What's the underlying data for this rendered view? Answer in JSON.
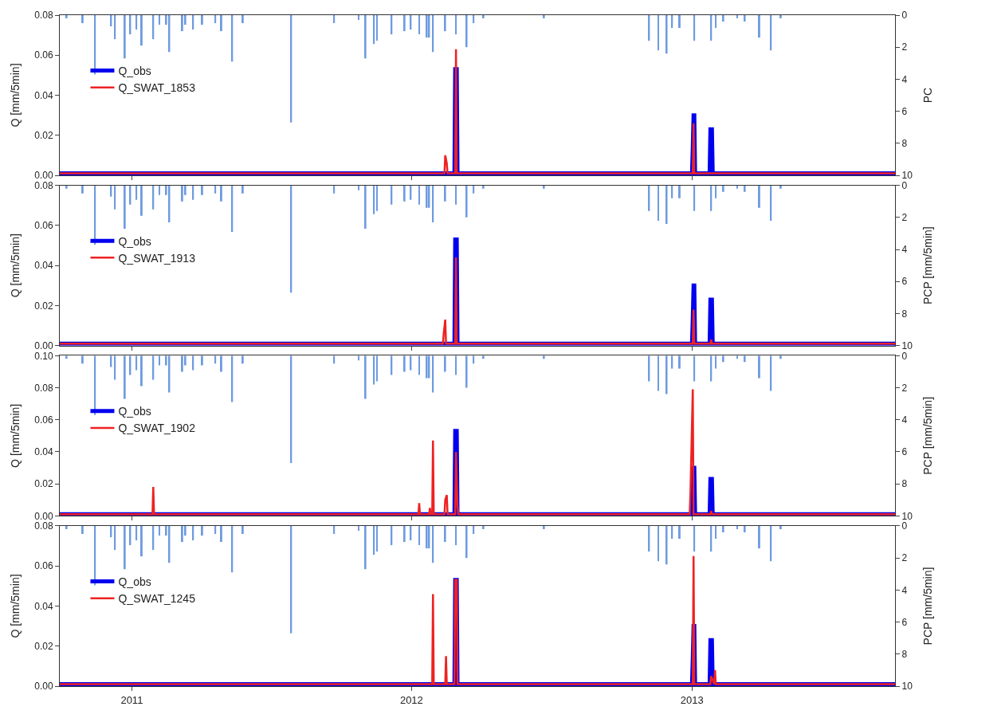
{
  "chart_data": [
    {
      "type": "line",
      "ylabel": "Q [mm/5min]",
      "y2label": "PC",
      "xlim": [
        "2010-09-29",
        "2013-09-23"
      ],
      "xticks": [
        {
          "value": "2011-01-01",
          "label": null
        },
        {
          "value": "2012-01-01",
          "label": null
        },
        {
          "value": "2013-01-01",
          "label": null
        }
      ],
      "ylim": [
        0,
        0.08
      ],
      "yticks": [
        {
          "value": 0,
          "label": "0.00"
        },
        {
          "value": 0.02,
          "label": "0.02"
        },
        {
          "value": 0.04,
          "label": "0.04"
        },
        {
          "value": 0.06,
          "label": "0.06"
        },
        {
          "value": 0.08,
          "label": "0.08"
        }
      ],
      "y2lim": [
        10,
        0
      ],
      "y2ticks": [
        0,
        2,
        4,
        6,
        8,
        10
      ],
      "tick_labels": "y",
      "legend": "left",
      "series": [
        {
          "type": "bar",
          "axis": "y2",
          "color": "#6f9be0",
          "x": [
            "2010-10-08",
            "2010-10-29",
            "2010-11-14",
            "2010-12-05",
            "2010-12-10",
            "2010-12-23",
            "2010-12-30",
            "2011-01-07",
            "2011-01-14",
            "2011-01-29",
            "2011-02-06",
            "2011-02-15",
            "2011-02-19",
            "2011-03-08",
            "2011-03-12",
            "2011-03-22",
            "2011-04-03",
            "2011-04-20",
            "2011-04-28",
            "2011-05-12",
            "2011-05-26",
            "2011-07-28",
            "2011-09-22",
            "2011-10-24",
            "2011-11-02",
            "2011-11-13",
            "2011-11-17",
            "2011-12-06",
            "2011-12-23",
            "2011-12-31",
            "2012-01-11",
            "2012-01-21",
            "2012-01-24",
            "2012-01-29",
            "2012-02-14",
            "2012-02-28",
            "2012-03-13",
            "2012-03-22",
            "2012-04-04",
            "2012-06-22",
            "2012-11-06",
            "2012-11-18",
            "2012-11-29",
            "2012-12-06",
            "2012-12-16",
            "2013-01-04",
            "2013-01-26",
            "2013-02-01",
            "2013-02-11",
            "2013-03-01",
            "2013-03-11",
            "2013-03-30",
            "2013-04-14",
            "2013-04-27"
          ],
          "values": [
            0.2,
            0.5,
            3.7,
            0.7,
            1.5,
            2.7,
            1.2,
            0.9,
            1.9,
            1.5,
            0.6,
            0.6,
            2.3,
            1.0,
            0.6,
            0.9,
            0.6,
            0.5,
            1.0,
            2.9,
            0.5,
            6.7,
            0.5,
            0.3,
            2.7,
            1.8,
            1.6,
            1.2,
            1.0,
            0.9,
            1.2,
            1.4,
            1.4,
            2.3,
            1.0,
            1.2,
            2.0,
            0.5,
            0.2,
            0.2,
            1.6,
            2.2,
            2.4,
            0.8,
            0.8,
            1.6,
            1.6,
            0.8,
            0.4,
            0.2,
            0.4,
            1.4,
            2.2,
            0.2
          ]
        },
        {
          "name": "Q_obs",
          "color": "#0000ee",
          "x": [
            "2010-09-29",
            "2012-02-26",
            "2012-02-27",
            "2012-02-29",
            "2012-03-01",
            "2013-01-01",
            "2013-01-02",
            "2013-01-03",
            "2013-01-04",
            "2013-01-05",
            "2013-01-24",
            "2013-01-25",
            "2013-01-27",
            "2013-01-28",
            "2013-09-23"
          ],
          "values": [
            0.001,
            0.001,
            0.053,
            0.053,
            0.001,
            0.001,
            0.014,
            0.03,
            0.03,
            0.001,
            0.001,
            0.023,
            0.023,
            0.001,
            0.001
          ]
        },
        {
          "name": "Q_SWAT_1853",
          "color": "#ee2222",
          "x": [
            "2010-09-29",
            "2012-02-13",
            "2012-02-14",
            "2012-02-16",
            "2012-02-17",
            "2012-02-27",
            "2012-02-28",
            "2012-02-29",
            "2013-01-02",
            "2013-01-03",
            "2013-01-04",
            "2013-09-23"
          ],
          "values": [
            0.001,
            0.001,
            0.01,
            0.006,
            0.001,
            0.001,
            0.063,
            0.001,
            0.001,
            0.026,
            0.001,
            0.001
          ]
        }
      ]
    },
    {
      "type": "line",
      "ylabel": "Q [mm/5min]",
      "y2label": "PCP [mm/5min]",
      "xlim": [
        "2010-09-29",
        "2013-09-23"
      ],
      "xticks": [
        {
          "value": "2011-01-01",
          "label": null
        },
        {
          "value": "2012-01-01",
          "label": null
        },
        {
          "value": "2013-01-01",
          "label": null
        }
      ],
      "ylim": [
        0,
        0.08
      ],
      "yticks": [
        {
          "value": 0,
          "label": "0.00"
        },
        {
          "value": 0.02,
          "label": "0.02"
        },
        {
          "value": 0.04,
          "label": "0.04"
        },
        {
          "value": 0.06,
          "label": "0.06"
        },
        {
          "value": 0.08,
          "label": "0.08"
        }
      ],
      "y2lim": [
        10,
        0
      ],
      "y2ticks": [
        0,
        2,
        4,
        6,
        8,
        10
      ],
      "tick_labels": "y",
      "legend": "left",
      "series": [
        {
          "type": "bar",
          "axis": "y2",
          "color": "#6f9be0",
          "x": [
            "2010-10-08",
            "2010-10-29",
            "2010-11-14",
            "2010-12-05",
            "2010-12-10",
            "2010-12-23",
            "2010-12-30",
            "2011-01-07",
            "2011-01-14",
            "2011-01-29",
            "2011-02-06",
            "2011-02-15",
            "2011-02-19",
            "2011-03-08",
            "2011-03-12",
            "2011-03-22",
            "2011-04-03",
            "2011-04-20",
            "2011-04-28",
            "2011-05-12",
            "2011-05-26",
            "2011-07-28",
            "2011-09-22",
            "2011-10-24",
            "2011-11-02",
            "2011-11-13",
            "2011-11-17",
            "2011-12-06",
            "2011-12-23",
            "2011-12-31",
            "2012-01-11",
            "2012-01-21",
            "2012-01-24",
            "2012-01-29",
            "2012-02-14",
            "2012-02-28",
            "2012-03-13",
            "2012-03-22",
            "2012-04-04",
            "2012-06-22",
            "2012-11-06",
            "2012-11-18",
            "2012-11-29",
            "2012-12-06",
            "2012-12-16",
            "2013-01-04",
            "2013-01-26",
            "2013-02-01",
            "2013-02-11",
            "2013-03-01",
            "2013-03-11",
            "2013-03-30",
            "2013-04-14",
            "2013-04-27"
          ],
          "values": [
            0.2,
            0.5,
            3.7,
            0.7,
            1.5,
            2.7,
            1.2,
            0.9,
            1.9,
            1.5,
            0.6,
            0.6,
            2.3,
            1.0,
            0.6,
            0.9,
            0.6,
            0.5,
            1.0,
            2.9,
            0.5,
            6.7,
            0.5,
            0.3,
            2.7,
            1.8,
            1.6,
            1.2,
            1.0,
            0.9,
            1.2,
            1.4,
            1.4,
            2.3,
            1.0,
            1.2,
            2.0,
            0.5,
            0.2,
            0.2,
            1.6,
            2.2,
            2.4,
            0.8,
            0.8,
            1.6,
            1.6,
            0.8,
            0.4,
            0.2,
            0.4,
            1.4,
            2.2,
            0.2
          ]
        },
        {
          "name": "Q_obs",
          "color": "#0000ee",
          "x": [
            "2010-09-29",
            "2012-02-26",
            "2012-02-27",
            "2012-02-29",
            "2012-03-01",
            "2013-01-01",
            "2013-01-02",
            "2013-01-03",
            "2013-01-04",
            "2013-01-05",
            "2013-01-24",
            "2013-01-25",
            "2013-01-27",
            "2013-01-28",
            "2013-09-23"
          ],
          "values": [
            0.001,
            0.001,
            0.053,
            0.053,
            0.001,
            0.001,
            0.014,
            0.03,
            0.03,
            0.001,
            0.001,
            0.023,
            0.023,
            0.001,
            0.001
          ]
        },
        {
          "name": "Q_SWAT_1913",
          "color": "#ee2222",
          "x": [
            "2010-09-29",
            "2012-02-11",
            "2012-02-12",
            "2012-02-14",
            "2012-02-15",
            "2012-02-27",
            "2012-02-28",
            "2012-02-29",
            "2013-01-02",
            "2013-01-03",
            "2013-01-04",
            "2013-01-25",
            "2013-01-26",
            "2013-01-27",
            "2013-09-23"
          ],
          "values": [
            0.001,
            0.001,
            0.006,
            0.013,
            0.001,
            0.001,
            0.044,
            0.001,
            0.001,
            0.018,
            0.001,
            0.001,
            0.003,
            0.001,
            0.001
          ]
        }
      ]
    },
    {
      "type": "line",
      "ylabel": "Q [mm/5min]",
      "y2label": "PCP [mm/5min]",
      "xlim": [
        "2010-09-29",
        "2013-09-23"
      ],
      "xticks": [
        {
          "value": "2011-01-01",
          "label": null
        },
        {
          "value": "2012-01-01",
          "label": null
        },
        {
          "value": "2013-01-01",
          "label": null
        }
      ],
      "ylim": [
        0,
        0.1
      ],
      "yticks": [
        {
          "value": 0,
          "label": "0.00"
        },
        {
          "value": 0.02,
          "label": "0.02"
        },
        {
          "value": 0.04,
          "label": "0.04"
        },
        {
          "value": 0.06,
          "label": "0.06"
        },
        {
          "value": 0.08,
          "label": "0.08"
        },
        {
          "value": 0.1,
          "label": "0.10"
        }
      ],
      "y2lim": [
        10,
        0
      ],
      "y2ticks": [
        0,
        2,
        4,
        6,
        8,
        10
      ],
      "tick_labels": "y",
      "legend": "left",
      "series": [
        {
          "type": "bar",
          "axis": "y2",
          "color": "#6f9be0",
          "x": [
            "2010-10-08",
            "2010-10-29",
            "2010-11-14",
            "2010-12-05",
            "2010-12-10",
            "2010-12-23",
            "2010-12-30",
            "2011-01-07",
            "2011-01-14",
            "2011-01-29",
            "2011-02-06",
            "2011-02-15",
            "2011-02-19",
            "2011-03-08",
            "2011-03-12",
            "2011-03-22",
            "2011-04-03",
            "2011-04-20",
            "2011-04-28",
            "2011-05-12",
            "2011-05-26",
            "2011-07-28",
            "2011-09-22",
            "2011-10-24",
            "2011-11-02",
            "2011-11-13",
            "2011-11-17",
            "2011-12-06",
            "2011-12-23",
            "2011-12-31",
            "2012-01-11",
            "2012-01-21",
            "2012-01-24",
            "2012-01-29",
            "2012-02-14",
            "2012-02-28",
            "2012-03-13",
            "2012-03-22",
            "2012-04-04",
            "2012-06-22",
            "2012-11-06",
            "2012-11-18",
            "2012-11-29",
            "2012-12-06",
            "2012-12-16",
            "2013-01-04",
            "2013-01-26",
            "2013-02-01",
            "2013-02-11",
            "2013-03-01",
            "2013-03-11",
            "2013-03-30",
            "2013-04-14",
            "2013-04-27"
          ],
          "values": [
            0.2,
            0.5,
            3.7,
            0.7,
            1.5,
            2.7,
            1.2,
            0.9,
            1.9,
            1.5,
            0.6,
            0.6,
            2.3,
            1.0,
            0.6,
            0.9,
            0.6,
            0.5,
            1.0,
            2.9,
            0.5,
            6.7,
            0.5,
            0.3,
            2.7,
            1.8,
            1.6,
            1.2,
            1.0,
            0.9,
            1.2,
            1.4,
            1.4,
            2.3,
            1.0,
            1.2,
            2.0,
            0.5,
            0.2,
            0.2,
            1.6,
            2.2,
            2.4,
            0.8,
            0.8,
            1.6,
            1.6,
            0.8,
            0.4,
            0.2,
            0.4,
            1.4,
            2.2,
            0.2
          ]
        },
        {
          "name": "Q_obs",
          "color": "#0000ee",
          "x": [
            "2010-09-29",
            "2012-02-26",
            "2012-02-27",
            "2012-02-29",
            "2012-03-01",
            "2013-01-01",
            "2013-01-02",
            "2013-01-03",
            "2013-01-04",
            "2013-01-05",
            "2013-01-24",
            "2013-01-25",
            "2013-01-27",
            "2013-01-28",
            "2013-09-23"
          ],
          "values": [
            0.001,
            0.001,
            0.053,
            0.053,
            0.001,
            0.001,
            0.014,
            0.03,
            0.03,
            0.001,
            0.001,
            0.023,
            0.023,
            0.001,
            0.001
          ]
        },
        {
          "name": "Q_SWAT_1902",
          "color": "#ee2222",
          "x": [
            "2010-09-29",
            "2011-01-28",
            "2011-01-29",
            "2011-01-30",
            "2012-01-10",
            "2012-01-11",
            "2012-01-12",
            "2012-01-24",
            "2012-01-25",
            "2012-01-26",
            "2012-01-28",
            "2012-01-29",
            "2012-01-30",
            "2012-02-13",
            "2012-02-14",
            "2012-02-16",
            "2012-02-17",
            "2012-02-27",
            "2012-02-28",
            "2012-03-01",
            "2012-03-02",
            "2012-12-29",
            "2012-12-30",
            "2013-01-02",
            "2013-01-03",
            "2013-01-04",
            "2013-01-25",
            "2013-01-26",
            "2013-01-27",
            "2013-09-23"
          ],
          "values": [
            0.001,
            0.001,
            0.018,
            0.001,
            0.001,
            0.008,
            0.001,
            0.001,
            0.005,
            0.001,
            0.001,
            0.047,
            0.001,
            0.001,
            0.01,
            0.013,
            0.001,
            0.001,
            0.04,
            0.006,
            0.001,
            0.001,
            0.015,
            0.079,
            0.001,
            0.001,
            0.001,
            0.003,
            0.001,
            0.001
          ]
        }
      ]
    },
    {
      "type": "line",
      "ylabel": "Q [mm/5min]",
      "y2label": "PCP [mm/5min]",
      "xlim": [
        "2010-09-29",
        "2013-09-23"
      ],
      "xticks": [
        {
          "value": "2011-01-01",
          "label": "2011"
        },
        {
          "value": "2012-01-01",
          "label": "2012"
        },
        {
          "value": "2013-01-01",
          "label": "2013"
        }
      ],
      "ylim": [
        0,
        0.08
      ],
      "yticks": [
        {
          "value": 0,
          "label": "0.00"
        },
        {
          "value": 0.02,
          "label": "0.02"
        },
        {
          "value": 0.04,
          "label": "0.04"
        },
        {
          "value": 0.06,
          "label": "0.06"
        },
        {
          "value": 0.08,
          "label": "0.08"
        }
      ],
      "y2lim": [
        10,
        0
      ],
      "y2ticks": [
        0,
        2,
        4,
        6,
        8,
        10
      ],
      "legend": "left",
      "series": [
        {
          "type": "bar",
          "axis": "y2",
          "color": "#6f9be0",
          "x": [
            "2010-10-08",
            "2010-10-29",
            "2010-11-14",
            "2010-12-05",
            "2010-12-10",
            "2010-12-23",
            "2010-12-30",
            "2011-01-07",
            "2011-01-14",
            "2011-01-29",
            "2011-02-06",
            "2011-02-15",
            "2011-02-19",
            "2011-03-08",
            "2011-03-12",
            "2011-03-22",
            "2011-04-03",
            "2011-04-20",
            "2011-04-28",
            "2011-05-12",
            "2011-05-26",
            "2011-07-28",
            "2011-09-22",
            "2011-10-24",
            "2011-11-02",
            "2011-11-13",
            "2011-11-17",
            "2011-12-06",
            "2011-12-23",
            "2011-12-31",
            "2012-01-11",
            "2012-01-21",
            "2012-01-24",
            "2012-01-29",
            "2012-02-14",
            "2012-02-28",
            "2012-03-13",
            "2012-03-22",
            "2012-04-04",
            "2012-06-22",
            "2012-11-06",
            "2012-11-18",
            "2012-11-29",
            "2012-12-06",
            "2012-12-16",
            "2013-01-04",
            "2013-01-26",
            "2013-02-01",
            "2013-02-11",
            "2013-03-01",
            "2013-03-11",
            "2013-03-30",
            "2013-04-14",
            "2013-04-27"
          ],
          "values": [
            0.2,
            0.5,
            3.7,
            0.7,
            1.5,
            2.7,
            1.2,
            0.9,
            1.9,
            1.5,
            0.6,
            0.6,
            2.3,
            1.0,
            0.6,
            0.9,
            0.6,
            0.5,
            1.0,
            2.9,
            0.5,
            6.7,
            0.5,
            0.3,
            2.7,
            1.8,
            1.6,
            1.2,
            1.0,
            0.9,
            1.2,
            1.4,
            1.4,
            2.3,
            1.0,
            1.2,
            2.0,
            0.5,
            0.2,
            0.2,
            1.6,
            2.2,
            2.4,
            0.8,
            0.8,
            1.6,
            1.6,
            0.8,
            0.4,
            0.2,
            0.4,
            1.4,
            2.2,
            0.2
          ]
        },
        {
          "name": "Q_obs",
          "color": "#0000ee",
          "x": [
            "2010-09-29",
            "2012-02-26",
            "2012-02-27",
            "2012-02-29",
            "2012-03-01",
            "2013-01-01",
            "2013-01-02",
            "2013-01-03",
            "2013-01-04",
            "2013-01-05",
            "2013-01-24",
            "2013-01-25",
            "2013-01-27",
            "2013-01-28",
            "2013-09-23"
          ],
          "values": [
            0.001,
            0.001,
            0.053,
            0.053,
            0.001,
            0.001,
            0.014,
            0.03,
            0.03,
            0.001,
            0.001,
            0.023,
            0.023,
            0.001,
            0.001
          ]
        },
        {
          "name": "Q_SWAT_1245",
          "color": "#ee2222",
          "x": [
            "2010-09-29",
            "2012-01-28",
            "2012-01-29",
            "2012-01-30",
            "2012-02-14",
            "2012-02-15",
            "2012-02-16",
            "2012-02-26",
            "2012-02-27",
            "2012-02-29",
            "2012-03-01",
            "2013-01-02",
            "2013-01-03",
            "2013-01-04",
            "2013-01-25",
            "2013-01-26",
            "2013-01-30",
            "2013-01-31",
            "2013-02-01",
            "2013-09-23"
          ],
          "values": [
            0.001,
            0.001,
            0.046,
            0.001,
            0.001,
            0.015,
            0.001,
            0.001,
            0.053,
            0.053,
            0.001,
            0.001,
            0.065,
            0.001,
            0.001,
            0.005,
            0.001,
            0.008,
            0.001,
            0.001
          ]
        }
      ]
    }
  ]
}
